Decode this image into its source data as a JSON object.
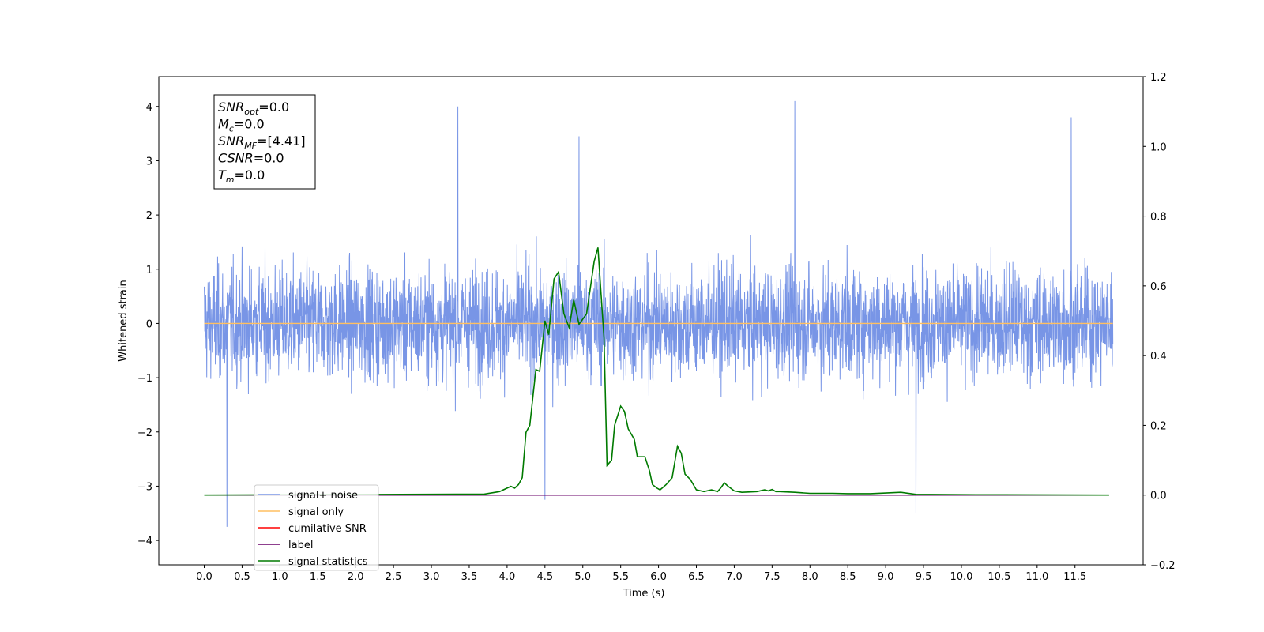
{
  "chart_data": {
    "type": "line",
    "xlabel": "Time (s)",
    "ylabel": "Whitened strain",
    "xlim": [
      -0.6,
      12.4
    ],
    "ylim": [
      -4.45,
      4.55
    ],
    "y2lim": [
      -0.2,
      1.2
    ],
    "x_ticks": [
      0.0,
      0.5,
      1.0,
      1.5,
      2.0,
      2.5,
      3.0,
      3.5,
      4.0,
      4.5,
      5.0,
      5.5,
      6.0,
      6.5,
      7.0,
      7.5,
      8.0,
      8.5,
      9.0,
      9.5,
      10.0,
      10.5,
      11.0,
      11.5
    ],
    "x_tick_labels": [
      "0.0",
      "0.5",
      "1.0",
      "1.5",
      "2.0",
      "2.5",
      "3.0",
      "3.5",
      "4.0",
      "4.5",
      "5.0",
      "5.5",
      "6.0",
      "6.5",
      "7.0",
      "7.5",
      "8.0",
      "8.5",
      "9.0",
      "9.5",
      "10.0",
      "10.5",
      "11.0",
      "11.5"
    ],
    "y_ticks": [
      -4,
      -3,
      -2,
      -1,
      0,
      1,
      2,
      3,
      4
    ],
    "y_tick_labels": [
      "−4",
      "−3",
      "−2",
      "−1",
      "0",
      "1",
      "2",
      "3",
      "4"
    ],
    "y2_ticks": [
      -0.2,
      0.0,
      0.2,
      0.4,
      0.6,
      0.8,
      1.0,
      1.2
    ],
    "y2_tick_labels": [
      "−0.2",
      "0.0",
      "0.2",
      "0.4",
      "0.6",
      "0.8",
      "1.0",
      "1.2"
    ],
    "grid": false,
    "legend_placement": "lower-left",
    "series": [
      {
        "name": "signal+ noise",
        "color": "#7895e6",
        "axis": "left",
        "x_range": [
          0.0,
          12.0
        ],
        "amplitude_range": [
          -3.8,
          4.1
        ],
        "peaks": [
          {
            "x": 0.3,
            "y": -3.75
          },
          {
            "x": 3.35,
            "y": 4.0
          },
          {
            "x": 4.95,
            "y": 3.45
          },
          {
            "x": 7.8,
            "y": 4.1
          },
          {
            "x": 11.45,
            "y": 3.8
          },
          {
            "x": 4.5,
            "y": -3.25
          },
          {
            "x": 9.4,
            "y": -3.5
          }
        ]
      },
      {
        "name": "signal only",
        "color": "#ffbf60",
        "axis": "left",
        "x": [
          0.0,
          12.0
        ],
        "y": [
          0.0,
          0.0
        ]
      },
      {
        "name": "cumilative SNR",
        "color": "#ff0000",
        "axis": "right",
        "x": [],
        "y": []
      },
      {
        "name": "label",
        "color": "#6a006a",
        "axis": "right",
        "x": [
          0.0,
          11.95
        ],
        "y": [
          0.0,
          0.0
        ]
      },
      {
        "name": "signal statistics",
        "color": "#007a00",
        "axis": "right",
        "x": [
          0.0,
          3.7,
          3.9,
          4.0,
          4.05,
          4.1,
          4.15,
          4.2,
          4.25,
          4.3,
          4.38,
          4.43,
          4.5,
          4.55,
          4.62,
          4.68,
          4.75,
          4.82,
          4.88,
          4.95,
          5.05,
          5.15,
          5.2,
          5.28,
          5.32,
          5.38,
          5.42,
          5.5,
          5.55,
          5.6,
          5.68,
          5.72,
          5.78,
          5.82,
          5.88,
          5.92,
          5.98,
          6.02,
          6.1,
          6.18,
          6.25,
          6.3,
          6.35,
          6.42,
          6.5,
          6.6,
          6.7,
          6.78,
          6.82,
          6.87,
          6.92,
          7.0,
          7.1,
          7.3,
          7.4,
          7.45,
          7.5,
          7.55,
          7.6,
          7.8,
          8.0,
          8.3,
          8.5,
          8.8,
          9.2,
          9.4,
          10.2,
          11.95
        ],
        "y": [
          0.0,
          0.003,
          0.01,
          0.02,
          0.025,
          0.02,
          0.03,
          0.05,
          0.18,
          0.2,
          0.36,
          0.355,
          0.5,
          0.46,
          0.62,
          0.64,
          0.52,
          0.48,
          0.56,
          0.49,
          0.52,
          0.67,
          0.71,
          0.45,
          0.085,
          0.1,
          0.2,
          0.255,
          0.24,
          0.19,
          0.16,
          0.11,
          0.11,
          0.11,
          0.07,
          0.03,
          0.02,
          0.015,
          0.03,
          0.05,
          0.14,
          0.12,
          0.06,
          0.045,
          0.015,
          0.01,
          0.015,
          0.01,
          0.02,
          0.035,
          0.025,
          0.012,
          0.008,
          0.01,
          0.015,
          0.012,
          0.016,
          0.01,
          0.01,
          0.008,
          0.005,
          0.005,
          0.004,
          0.004,
          0.008,
          0.002,
          0.001,
          0.0
        ]
      }
    ],
    "info_box": [
      {
        "var": "SNR",
        "sub": "opt",
        "value": "=0.0"
      },
      {
        "var": "M",
        "sub": "c",
        "value": "=0.0"
      },
      {
        "var": "SNR",
        "sub": "MF",
        "value": "=[4.41]"
      },
      {
        "var": "CSNR",
        "sub": "",
        "value": "=0.0"
      },
      {
        "var": "T",
        "sub": "m",
        "value": "=0.0"
      }
    ]
  }
}
